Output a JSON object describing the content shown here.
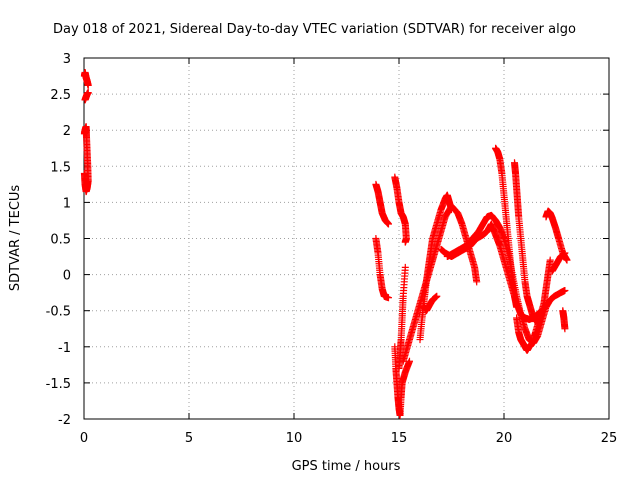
{
  "chart_data": {
    "type": "scatter",
    "title": "Day 018 of 2021, Sidereal Day-to-day VTEC variation (SDTVAR) for receiver algo",
    "xlabel": "GPS time / hours",
    "ylabel": "SDTVAR / TECUs",
    "xlim": [
      0,
      25
    ],
    "ylim": [
      -2,
      3
    ],
    "xticks": [
      0,
      5,
      10,
      15,
      20,
      25
    ],
    "yticks": [
      -2,
      -1.5,
      -1,
      -0.5,
      0,
      0.5,
      1,
      1.5,
      2,
      2.5,
      3
    ],
    "grid": true,
    "marker": "+",
    "color": "#ff0000",
    "series": [
      {
        "name": "SDTVAR",
        "segments": [
          [
            [
              0.02,
              2.75
            ],
            [
              0.05,
              2.8
            ],
            [
              0.1,
              2.73
            ],
            [
              0.15,
              2.68
            ],
            [
              0.2,
              2.62
            ]
          ],
          [
            [
              0.05,
              2.42
            ],
            [
              0.1,
              2.46
            ],
            [
              0.15,
              2.5
            ],
            [
              0.2,
              2.52
            ]
          ],
          [
            [
              0.02,
              1.95
            ],
            [
              0.05,
              2.0
            ],
            [
              0.1,
              2.05
            ],
            [
              0.12,
              1.9
            ],
            [
              0.15,
              1.7
            ],
            [
              0.18,
              1.5
            ],
            [
              0.2,
              1.3
            ],
            [
              0.15,
              1.2
            ],
            [
              0.1,
              1.15
            ],
            [
              0.05,
              1.25
            ],
            [
              0.02,
              1.4
            ]
          ],
          [
            [
              13.9,
              1.25
            ],
            [
              14.0,
              1.15
            ],
            [
              14.1,
              1.0
            ],
            [
              14.2,
              0.85
            ],
            [
              14.35,
              0.75
            ],
            [
              14.5,
              0.7
            ]
          ],
          [
            [
              13.9,
              0.5
            ],
            [
              14.0,
              0.3
            ],
            [
              14.1,
              0.0
            ],
            [
              14.2,
              -0.2
            ],
            [
              14.3,
              -0.3
            ],
            [
              14.5,
              -0.32
            ]
          ],
          [
            [
              14.8,
              1.35
            ],
            [
              14.9,
              1.2
            ],
            [
              15.0,
              1.0
            ],
            [
              15.1,
              0.85
            ],
            [
              15.2,
              0.8
            ],
            [
              15.3,
              0.7
            ],
            [
              15.35,
              0.5
            ],
            [
              15.3,
              0.45
            ]
          ],
          [
            [
              15.3,
              0.1
            ],
            [
              15.2,
              -0.3
            ],
            [
              15.15,
              -0.6
            ],
            [
              15.1,
              -0.9
            ],
            [
              15.05,
              -1.1
            ],
            [
              15.0,
              -1.3
            ]
          ],
          [
            [
              14.8,
              -1.0
            ],
            [
              14.85,
              -1.3
            ],
            [
              14.9,
              -1.5
            ],
            [
              14.95,
              -1.7
            ],
            [
              15.0,
              -1.85
            ],
            [
              15.05,
              -1.95
            ],
            [
              15.1,
              -1.7
            ],
            [
              15.15,
              -1.5
            ],
            [
              15.3,
              -1.35
            ],
            [
              15.5,
              -1.2
            ]
          ],
          [
            [
              15.2,
              -1.2
            ],
            [
              15.4,
              -1.0
            ],
            [
              15.6,
              -0.8
            ],
            [
              15.8,
              -0.6
            ],
            [
              16.0,
              -0.4
            ],
            [
              16.2,
              -0.2
            ],
            [
              16.4,
              0.0
            ],
            [
              16.6,
              0.2
            ],
            [
              16.8,
              0.4
            ],
            [
              17.0,
              0.6
            ],
            [
              17.2,
              0.8
            ],
            [
              17.5,
              0.95
            ],
            [
              17.8,
              0.85
            ],
            [
              18.0,
              0.7
            ],
            [
              18.2,
              0.5
            ],
            [
              18.4,
              0.3
            ],
            [
              18.6,
              0.1
            ],
            [
              18.7,
              -0.1
            ]
          ],
          [
            [
              16.0,
              -0.9
            ],
            [
              16.1,
              -0.6
            ],
            [
              16.2,
              -0.35
            ],
            [
              16.3,
              -0.1
            ],
            [
              16.4,
              0.1
            ],
            [
              16.5,
              0.3
            ],
            [
              16.6,
              0.5
            ],
            [
              16.8,
              0.7
            ],
            [
              17.0,
              0.9
            ],
            [
              17.2,
              1.05
            ],
            [
              17.3,
              1.1
            ],
            [
              17.4,
              1.0
            ],
            [
              17.5,
              0.9
            ]
          ],
          [
            [
              16.2,
              -0.45
            ],
            [
              16.3,
              -0.5
            ],
            [
              16.4,
              -0.45
            ],
            [
              16.6,
              -0.35
            ],
            [
              16.8,
              -0.3
            ]
          ],
          [
            [
              17.3,
              0.25
            ],
            [
              17.6,
              0.3
            ],
            [
              17.9,
              0.35
            ],
            [
              18.2,
              0.4
            ],
            [
              18.5,
              0.5
            ],
            [
              18.8,
              0.6
            ],
            [
              19.0,
              0.7
            ],
            [
              19.2,
              0.8
            ],
            [
              19.4,
              0.82
            ],
            [
              19.6,
              0.75
            ],
            [
              19.8,
              0.65
            ],
            [
              20.0,
              0.5
            ],
            [
              20.2,
              0.3
            ],
            [
              20.4,
              0.0
            ],
            [
              20.6,
              -0.3
            ],
            [
              20.8,
              -0.55
            ],
            [
              21.0,
              -0.75
            ],
            [
              21.2,
              -0.9
            ],
            [
              21.4,
              -0.95
            ],
            [
              21.6,
              -0.85
            ],
            [
              21.8,
              -0.65
            ],
            [
              22.0,
              -0.45
            ],
            [
              22.2,
              -0.35
            ],
            [
              22.4,
              -0.3
            ],
            [
              22.7,
              -0.25
            ],
            [
              22.9,
              -0.22
            ]
          ],
          [
            [
              17.0,
              0.35
            ],
            [
              17.2,
              0.3
            ],
            [
              17.5,
              0.25
            ],
            [
              17.8,
              0.3
            ],
            [
              18.1,
              0.35
            ],
            [
              18.4,
              0.4
            ],
            [
              18.7,
              0.5
            ],
            [
              19.0,
              0.55
            ],
            [
              19.2,
              0.6
            ],
            [
              19.4,
              0.7
            ],
            [
              19.6,
              0.55
            ],
            [
              19.8,
              0.4
            ],
            [
              20.0,
              0.2
            ],
            [
              20.2,
              0.0
            ],
            [
              20.4,
              -0.2
            ],
            [
              20.6,
              -0.4
            ],
            [
              20.8,
              -0.55
            ],
            [
              21.0,
              -0.6
            ],
            [
              21.2,
              -0.62
            ],
            [
              21.4,
              -0.6
            ],
            [
              21.6,
              -0.55
            ],
            [
              21.8,
              -0.5
            ]
          ],
          [
            [
              19.6,
              1.75
            ],
            [
              19.7,
              1.7
            ],
            [
              19.8,
              1.6
            ],
            [
              19.9,
              1.4
            ],
            [
              20.0,
              1.1
            ],
            [
              20.1,
              0.8
            ],
            [
              20.2,
              0.5
            ],
            [
              20.3,
              0.2
            ],
            [
              20.4,
              -0.1
            ],
            [
              20.5,
              -0.3
            ],
            [
              20.6,
              -0.45
            ]
          ],
          [
            [
              20.5,
              1.55
            ],
            [
              20.55,
              1.4
            ],
            [
              20.6,
              1.2
            ],
            [
              20.65,
              1.0
            ],
            [
              20.7,
              0.8
            ],
            [
              20.8,
              0.5
            ],
            [
              20.9,
              0.2
            ],
            [
              21.0,
              -0.1
            ],
            [
              21.1,
              -0.3
            ],
            [
              21.2,
              -0.4
            ],
            [
              21.35,
              -0.55
            ],
            [
              21.5,
              -0.65
            ],
            [
              21.6,
              -0.6
            ]
          ],
          [
            [
              20.6,
              -0.6
            ],
            [
              20.7,
              -0.8
            ],
            [
              20.8,
              -0.9
            ],
            [
              20.9,
              -0.95
            ],
            [
              21.0,
              -1.0
            ],
            [
              21.1,
              -1.05
            ],
            [
              21.2,
              -1.0
            ],
            [
              21.35,
              -0.95
            ],
            [
              21.5,
              -0.8
            ],
            [
              21.7,
              -0.6
            ],
            [
              21.9,
              -0.4
            ],
            [
              22.0,
              -0.2
            ],
            [
              22.1,
              0.0
            ],
            [
              22.2,
              0.2
            ]
          ],
          [
            [
              22.0,
              0.8
            ],
            [
              22.1,
              0.88
            ],
            [
              22.2,
              0.85
            ],
            [
              22.3,
              0.78
            ],
            [
              22.45,
              0.65
            ],
            [
              22.6,
              0.5
            ],
            [
              22.8,
              0.3
            ],
            [
              23.0,
              0.2
            ]
          ],
          [
            [
              22.3,
              0.05
            ],
            [
              22.5,
              0.15
            ],
            [
              22.7,
              0.25
            ],
            [
              22.9,
              0.3
            ]
          ],
          [
            [
              22.8,
              -0.5
            ],
            [
              22.85,
              -0.6
            ],
            [
              22.9,
              -0.75
            ]
          ]
        ]
      }
    ]
  }
}
